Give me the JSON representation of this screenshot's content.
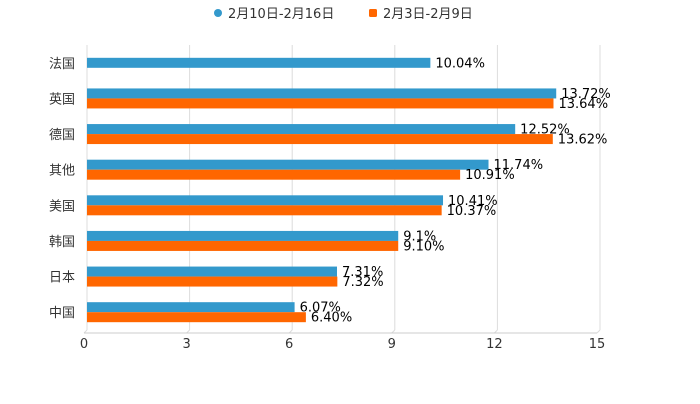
{
  "chart_data": {
    "type": "bar",
    "orientation": "horizontal",
    "categories": [
      "法国",
      "英国",
      "德国",
      "其他",
      "美国",
      "韩国",
      "日本",
      "中国"
    ],
    "series": [
      {
        "name": "2月10日-2月16日",
        "color": "#3399CC",
        "values": [
          10.04,
          13.72,
          12.52,
          11.74,
          10.41,
          9.1,
          7.31,
          6.07
        ],
        "labels": [
          "10.04%",
          "13.72%",
          "12.52%",
          "11.74%",
          "10.41%",
          "9.1%",
          "7.31%",
          "6.07%"
        ]
      },
      {
        "name": "2月3日-2月9日",
        "color": "#FF6600",
        "values": [
          null,
          13.64,
          13.62,
          10.91,
          10.37,
          9.1,
          7.32,
          6.4
        ],
        "labels": [
          null,
          "13.64%",
          "13.62%",
          "10.91%",
          "10.37%",
          "9.10%",
          "7.32%",
          "6.40%"
        ]
      }
    ],
    "xlim": [
      0,
      15
    ],
    "ticks": [
      0,
      3,
      6,
      9,
      12,
      15
    ],
    "tick_labels": [
      "0",
      "3",
      "6",
      "9",
      "12",
      "15"
    ],
    "grid": true,
    "legend_position": "top-center",
    "title": "",
    "xlabel": "",
    "ylabel": ""
  }
}
